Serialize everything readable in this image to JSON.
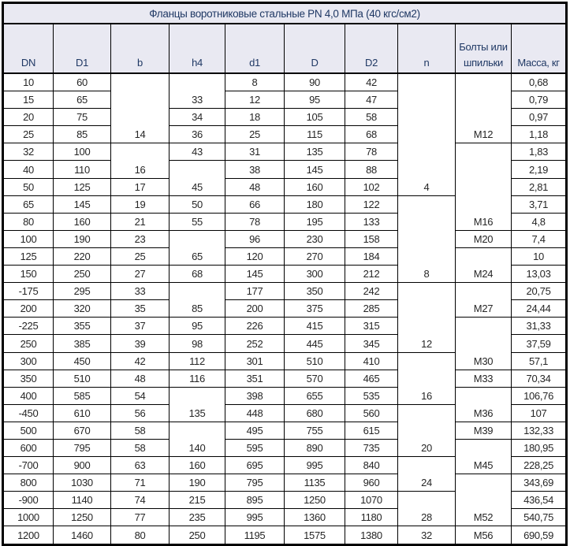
{
  "title": "Фланцы воротниковые стальные PN 4,0 МПа (40 кгс/см2)",
  "colors": {
    "header_bg": "#e9e9f2",
    "title_text": "#1f3864",
    "header_text": "#1f3864",
    "data_text": "#262626",
    "border": "#000000",
    "row_bg": "#ffffff"
  },
  "chart_data": {
    "type": "table",
    "title": "Фланцы воротниковые стальные PN 4,0 МПа (40 кгс/см2)",
    "legend_note": "merged cells: value object v = text, rs = rowspan; text bottom-aligned in merged span",
    "columns": [
      {
        "key": "dn",
        "label": "DN"
      },
      {
        "key": "d1f",
        "label": "D1"
      },
      {
        "key": "b",
        "label": "b"
      },
      {
        "key": "h4",
        "label": "h4"
      },
      {
        "key": "d1",
        "label": "d1"
      },
      {
        "key": "d",
        "label": "D"
      },
      {
        "key": "d2",
        "label": "D2"
      },
      {
        "key": "n",
        "label": "n"
      },
      {
        "key": "bolts",
        "label": "Болты или шпильки"
      },
      {
        "key": "mass",
        "label": "Масса, кг"
      }
    ],
    "rows": [
      {
        "dn": "10",
        "d1f": "60",
        "b": {
          "v": "14",
          "rs": 4
        },
        "h4": {
          "v": "33",
          "rs": 2
        },
        "d1": "8",
        "d": "90",
        "d2": "42",
        "n": {
          "v": "4",
          "rs": 7
        },
        "bolts": {
          "v": "M12",
          "rs": 4
        },
        "mass": "0,68"
      },
      {
        "dn": "15",
        "d1f": "65",
        "d1": "12",
        "d": "95",
        "d2": "47",
        "mass": "0,79"
      },
      {
        "dn": "20",
        "d1f": "75",
        "h4": "34",
        "d1": "18",
        "d": "105",
        "d2": "58",
        "mass": "0,97"
      },
      {
        "dn": "25",
        "d1f": "85",
        "h4": "36",
        "d1": "25",
        "d": "115",
        "d2": "68",
        "mass": "1,18"
      },
      {
        "dn": "32",
        "d1f": "100",
        "b": {
          "v": "16",
          "rs": 2
        },
        "h4": "43",
        "d1": "31",
        "d": "135",
        "d2": "78",
        "bolts": {
          "v": "M16",
          "rs": 5
        },
        "mass": "1,83"
      },
      {
        "dn": "40",
        "d1f": "110",
        "h4": {
          "v": "45",
          "rs": 2
        },
        "d1": "38",
        "d": "145",
        "d2": "88",
        "mass": "2,19"
      },
      {
        "dn": "50",
        "d1f": "125",
        "b": "17",
        "d1": "48",
        "d": "160",
        "d2": "102",
        "mass": "2,81"
      },
      {
        "dn": "65",
        "d1f": "145",
        "b": "19",
        "h4": "50",
        "d1": "66",
        "d": "180",
        "d2": "122",
        "n": {
          "v": "8",
          "rs": 5
        },
        "mass": "3,71"
      },
      {
        "dn": "80",
        "d1f": "160",
        "b": "21",
        "h4": "55",
        "d1": "78",
        "d": "195",
        "d2": "133",
        "mass": "4,8"
      },
      {
        "dn": "100",
        "d1f": "190",
        "b": "23",
        "h4": {
          "v": "65",
          "rs": 2
        },
        "d1": "96",
        "d": "230",
        "d2": "158",
        "bolts": "M20",
        "mass": "7,4"
      },
      {
        "dn": "125",
        "d1f": "220",
        "b": "25",
        "d1": "120",
        "d": "270",
        "d2": "184",
        "bolts": {
          "v": "M24",
          "rs": 2
        },
        "mass": "10"
      },
      {
        "dn": "150",
        "d1f": "250",
        "b": "27",
        "h4": "68",
        "d1": "145",
        "d": "300",
        "d2": "212",
        "mass": "13,03"
      },
      {
        "dn": "-175",
        "d1f": "295",
        "b": "33",
        "h4": {
          "v": "85",
          "rs": 2
        },
        "d1": "177",
        "d": "350",
        "d2": "242",
        "n": {
          "v": "12",
          "rs": 4
        },
        "bolts": {
          "v": "M27",
          "rs": 2
        },
        "mass": "20,75"
      },
      {
        "dn": "200",
        "d1f": "320",
        "b": "35",
        "d1": "200",
        "d": "375",
        "d2": "285",
        "mass": "24,44"
      },
      {
        "dn": "-225",
        "d1f": "355",
        "b": "37",
        "h4": "95",
        "d1": "226",
        "d": "415",
        "d2": "315",
        "bolts": {
          "v": "M30",
          "rs": 3
        },
        "mass": "31,33"
      },
      {
        "dn": "250",
        "d1f": "385",
        "b": "39",
        "h4": "98",
        "d1": "252",
        "d": "445",
        "d2": "345",
        "mass": "37,59"
      },
      {
        "dn": "300",
        "d1f": "450",
        "b": "42",
        "h4": "112",
        "d1": "301",
        "d": "510",
        "d2": "410",
        "n": {
          "v": "16",
          "rs": 3
        },
        "mass": "57,1"
      },
      {
        "dn": "350",
        "d1f": "510",
        "b": "48",
        "h4": "116",
        "d1": "351",
        "d": "570",
        "d2": "465",
        "bolts": "M33",
        "mass": "70,34"
      },
      {
        "dn": "400",
        "d1f": "585",
        "b": "54",
        "h4": {
          "v": "135",
          "rs": 2
        },
        "d1": "398",
        "d": "655",
        "d2": "535",
        "bolts": {
          "v": "M36",
          "rs": 2
        },
        "mass": "106,76"
      },
      {
        "dn": "-450",
        "d1f": "610",
        "b": "56",
        "d1": "448",
        "d": "680",
        "d2": "560",
        "n": {
          "v": "20",
          "rs": 3
        },
        "mass": "107"
      },
      {
        "dn": "500",
        "d1f": "670",
        "b": "58",
        "h4": {
          "v": "140",
          "rs": 2
        },
        "d1": "495",
        "d": "755",
        "d2": "615",
        "bolts": "M39",
        "mass": "132,33"
      },
      {
        "dn": "600",
        "d1f": "795",
        "b": "58",
        "d1": "595",
        "d": "890",
        "d2": "735",
        "bolts": {
          "v": "M45",
          "rs": 2
        },
        "mass": "180,95"
      },
      {
        "dn": "-700",
        "d1f": "900",
        "b": "63",
        "h4": "160",
        "d1": "695",
        "d": "995",
        "d2": "840",
        "n": {
          "v": "24",
          "rs": 2
        },
        "mass": "228,25"
      },
      {
        "dn": "800",
        "d1f": "1030",
        "b": "71",
        "h4": "190",
        "d1": "795",
        "d": "1135",
        "d2": "960",
        "bolts": {
          "v": "M52",
          "rs": 3
        },
        "mass": "343,69"
      },
      {
        "dn": "-900",
        "d1f": "1140",
        "b": "74",
        "h4": "215",
        "d1": "895",
        "d": "1250",
        "d2": "1070",
        "n": {
          "v": "28",
          "rs": 2
        },
        "mass": "436,54"
      },
      {
        "dn": "1000",
        "d1f": "1250",
        "b": "77",
        "h4": "235",
        "d1": "995",
        "d": "1360",
        "d2": "1180",
        "mass": "540,75"
      },
      {
        "dn": "1200",
        "d1f": "1460",
        "b": "80",
        "h4": "250",
        "d1": "1195",
        "d": "1575",
        "d2": "1380",
        "n": "32",
        "bolts": "M56",
        "mass": "690,59"
      }
    ]
  }
}
